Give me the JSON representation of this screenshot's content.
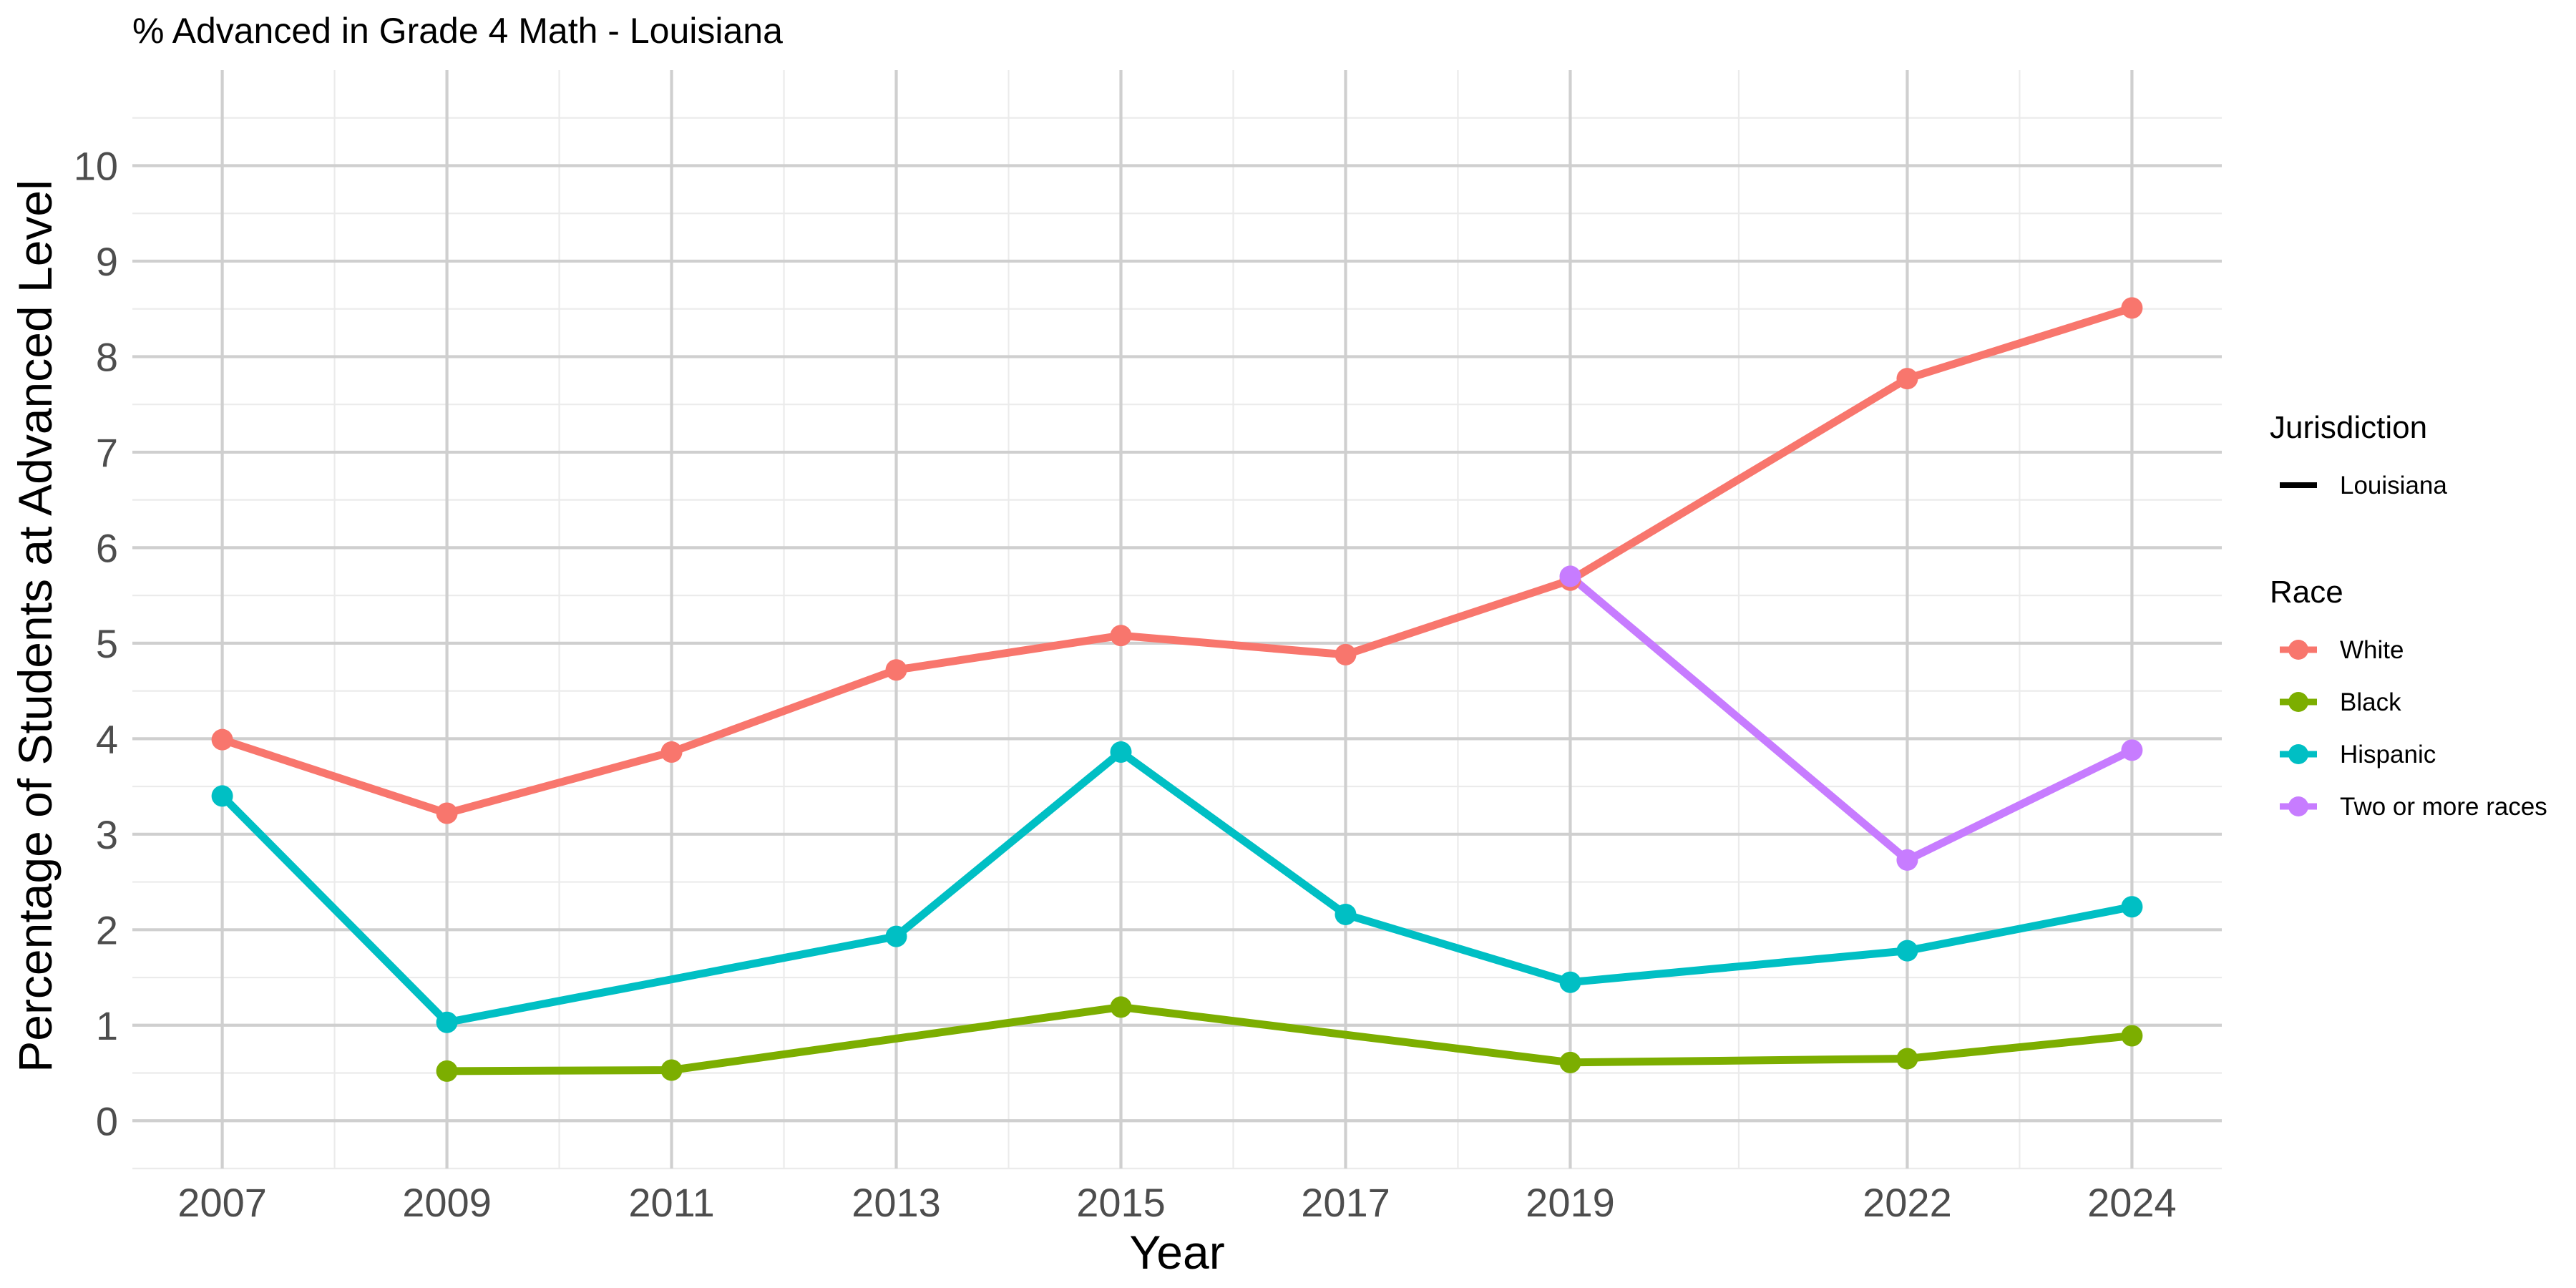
{
  "chart_data": {
    "type": "line",
    "title": "% Advanced in Grade 4 Math - Louisiana",
    "xlabel": "Year",
    "ylabel": "Percentage of Students at Advanced Level",
    "x_ticks": [
      2007,
      2009,
      2011,
      2013,
      2015,
      2017,
      2019,
      2022,
      2024
    ],
    "y_ticks": [
      0,
      1,
      2,
      3,
      4,
      5,
      6,
      7,
      8,
      9,
      10
    ],
    "xlim": [
      2006.2,
      2024.8
    ],
    "ylim": [
      -0.5,
      11.0
    ],
    "grid": true,
    "legend_position": "right",
    "legend": {
      "jurisdiction_title": "Jurisdiction",
      "jurisdiction_entries": [
        "Louisiana"
      ],
      "race_title": "Race"
    },
    "series": [
      {
        "name": "White",
        "color": "#F8766D",
        "x": [
          2007,
          2009,
          2011,
          2013,
          2015,
          2017,
          2019,
          2022,
          2024
        ],
        "y": [
          3.99,
          3.22,
          3.86,
          4.72,
          5.08,
          4.88,
          5.66,
          7.77,
          8.51
        ]
      },
      {
        "name": "Black",
        "color": "#7CAE00",
        "x": [
          2009,
          2011,
          2015,
          2019,
          2022,
          2024
        ],
        "y": [
          0.52,
          0.53,
          1.19,
          0.61,
          0.65,
          0.89
        ]
      },
      {
        "name": "Hispanic",
        "color": "#00BFC4",
        "x": [
          2007,
          2009,
          2013,
          2015,
          2017,
          2019,
          2022,
          2024
        ],
        "y": [
          3.4,
          1.03,
          1.93,
          3.86,
          2.16,
          1.45,
          1.78,
          2.24
        ]
      },
      {
        "name": "Two or more races",
        "color": "#C77CFF",
        "x": [
          2019,
          2022,
          2024
        ],
        "y": [
          5.7,
          2.73,
          3.88
        ]
      }
    ]
  }
}
